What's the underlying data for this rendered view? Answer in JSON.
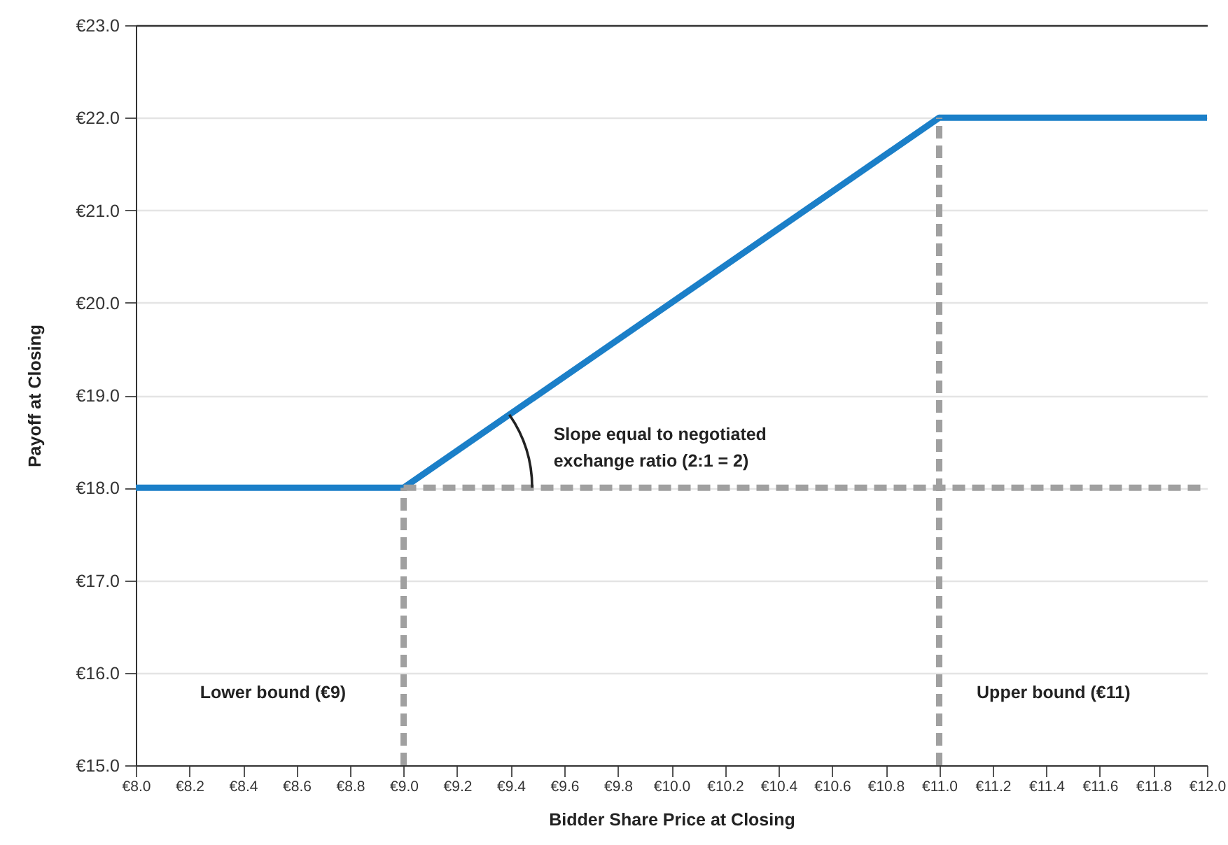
{
  "chart_data": {
    "type": "line",
    "xlabel": "Bidder Share Price at Closing",
    "ylabel": "Payoff at Closing",
    "xlim": [
      8,
      12
    ],
    "ylim": [
      15,
      23
    ],
    "xticks": [
      {
        "value": 8,
        "label": "€8.0"
      },
      {
        "value": 8.2,
        "label": "€8.2"
      },
      {
        "value": 8.4,
        "label": "€8.4"
      },
      {
        "value": 8.6,
        "label": "€8.6"
      },
      {
        "value": 8.8,
        "label": "€8.8"
      },
      {
        "value": 9,
        "label": "€9.0"
      },
      {
        "value": 9.2,
        "label": "€9.2"
      },
      {
        "value": 9.4,
        "label": "€9.4"
      },
      {
        "value": 9.6,
        "label": "€9.6"
      },
      {
        "value": 9.8,
        "label": "€9.8"
      },
      {
        "value": 10,
        "label": "€10.0"
      },
      {
        "value": 10.2,
        "label": "€10.2"
      },
      {
        "value": 10.4,
        "label": "€10.4"
      },
      {
        "value": 10.6,
        "label": "€10.6"
      },
      {
        "value": 10.8,
        "label": "€10.8"
      },
      {
        "value": 11,
        "label": "€11.0"
      },
      {
        "value": 11.2,
        "label": "€11.2"
      },
      {
        "value": 11.4,
        "label": "€11.4"
      },
      {
        "value": 11.6,
        "label": "€11.6"
      },
      {
        "value": 11.8,
        "label": "€11.8"
      },
      {
        "value": 12,
        "label": "€12.0"
      }
    ],
    "yticks": [
      {
        "value": 15,
        "label": "€15.0"
      },
      {
        "value": 16,
        "label": "€16.0"
      },
      {
        "value": 17,
        "label": "€17.0"
      },
      {
        "value": 18,
        "label": "€18.0"
      },
      {
        "value": 19,
        "label": "€19.0"
      },
      {
        "value": 20,
        "label": "€20.0"
      },
      {
        "value": 21,
        "label": "€21.0"
      },
      {
        "value": 22,
        "label": "€22.0"
      },
      {
        "value": 23,
        "label": "€23.0"
      }
    ],
    "grid": "y",
    "marker": "none",
    "series": [
      {
        "color": "#1b7fc8",
        "line_style": "solid",
        "x": [
          8,
          9,
          11,
          12
        ],
        "values": [
          18,
          18,
          22,
          22
        ]
      },
      {
        "color": "#a0a0a0",
        "line_style": "dashed",
        "x": [
          9,
          12
        ],
        "values": [
          18,
          18
        ]
      },
      {
        "color": "#a0a0a0",
        "line_style": "dashed",
        "x": [
          9,
          9
        ],
        "values": [
          15,
          18
        ]
      },
      {
        "color": "#a0a0a0",
        "line_style": "dashed",
        "x": [
          11,
          11
        ],
        "values": [
          15,
          22
        ]
      }
    ],
    "annotations": [
      "Slope equal to negotiated\nexchange ratio (2:1 = 2)",
      "Lower bound (€9)",
      "Upper bound (€11)"
    ]
  }
}
